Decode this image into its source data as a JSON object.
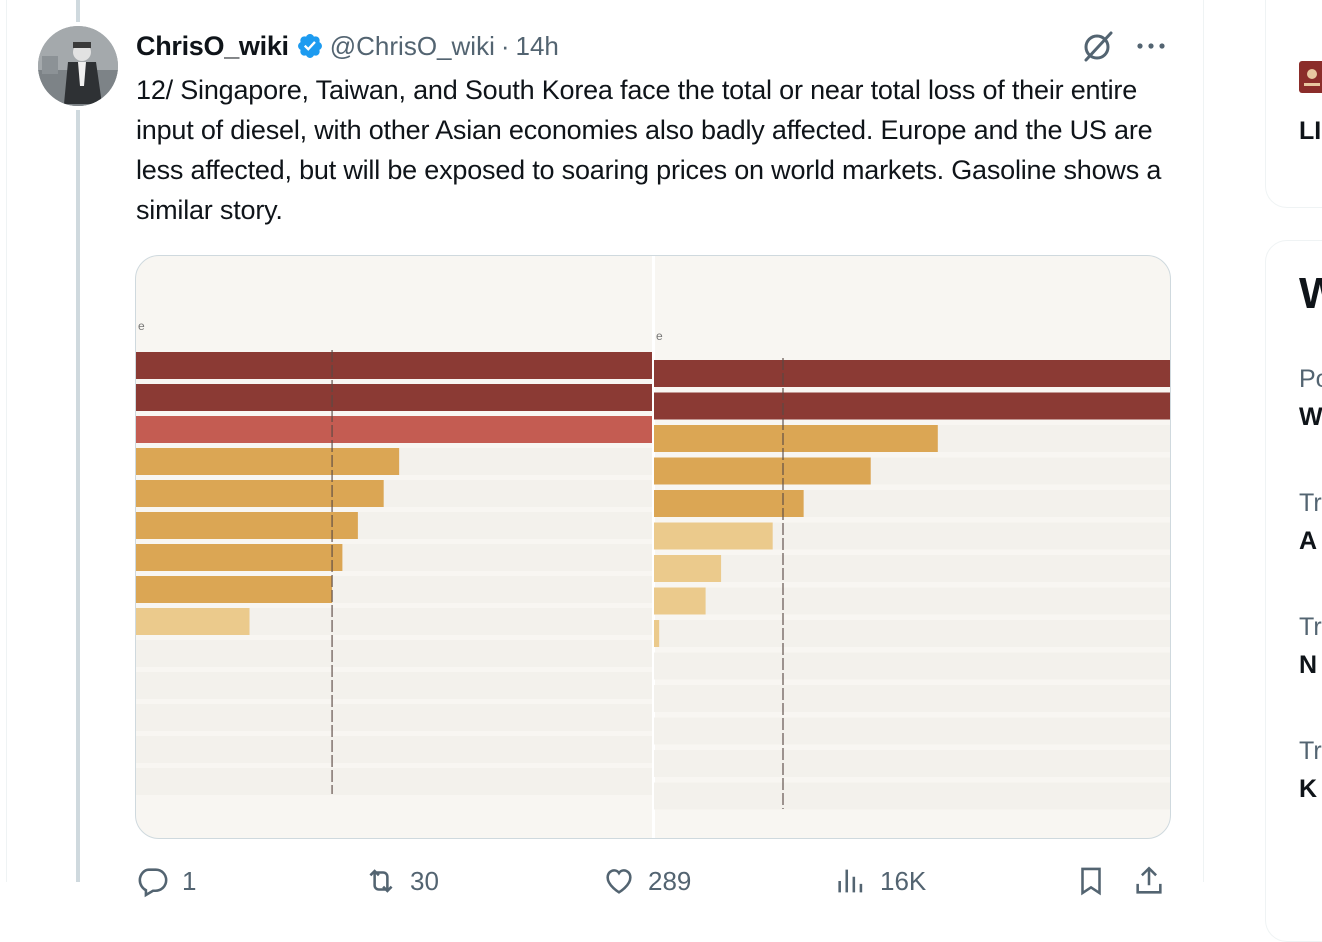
{
  "tweet": {
    "display_name": "ChrisO_wiki",
    "handle": "@ChrisO_wiki",
    "separator": "·",
    "time": "14h",
    "text": "12/ Singapore, Taiwan, and South Korea face the total or near total loss of their entire input of diesel, with other Asian economies also badly affected. Europe and the US are less affected, but will be exposed to soaring prices on world markets. Gasoline shows a similar story.",
    "actions": {
      "replies": "1",
      "reposts": "30",
      "likes": "289",
      "views": "16K"
    }
  },
  "colors": {
    "dark_red": "#8b3a34",
    "red": "#c45c52",
    "orange": "#dba654",
    "light_orange": "#ebca8c",
    "track": "#f3f1ec",
    "verified_blue": "#1d9bf0"
  },
  "chart_data": [
    {
      "type": "bar",
      "orientation": "horizontal",
      "header_label": "e",
      "xlim": [
        0,
        100
      ],
      "reference_line": 38,
      "values": [
        100,
        100,
        100,
        51,
        48,
        43,
        40,
        38,
        22,
        0,
        0,
        0,
        0,
        0
      ],
      "shades": [
        "dark_red",
        "dark_red",
        "red",
        "orange",
        "orange",
        "orange",
        "orange",
        "orange",
        "light_orange",
        "track",
        "track",
        "track",
        "track",
        "track"
      ]
    },
    {
      "type": "bar",
      "orientation": "horizontal",
      "header_label": "e",
      "xlim": [
        0,
        100
      ],
      "reference_line": 25,
      "values": [
        100,
        100,
        55,
        42,
        29,
        23,
        13,
        10,
        1,
        0,
        0,
        0,
        0,
        0
      ],
      "shades": [
        "dark_red",
        "dark_red",
        "orange",
        "orange",
        "orange",
        "light_orange",
        "light_orange",
        "light_orange",
        "light_orange",
        "track",
        "track",
        "track",
        "track",
        "track"
      ]
    }
  ],
  "sidebar": {
    "card1": {
      "fragment": "LI"
    },
    "card2": {
      "title_fragment": "W",
      "items": [
        {
          "meta": "Po",
          "title": "W"
        },
        {
          "meta": "Tr",
          "title": "A"
        },
        {
          "meta": "Tr",
          "title": "N"
        },
        {
          "meta": "Tr",
          "title": "K"
        }
      ]
    }
  }
}
